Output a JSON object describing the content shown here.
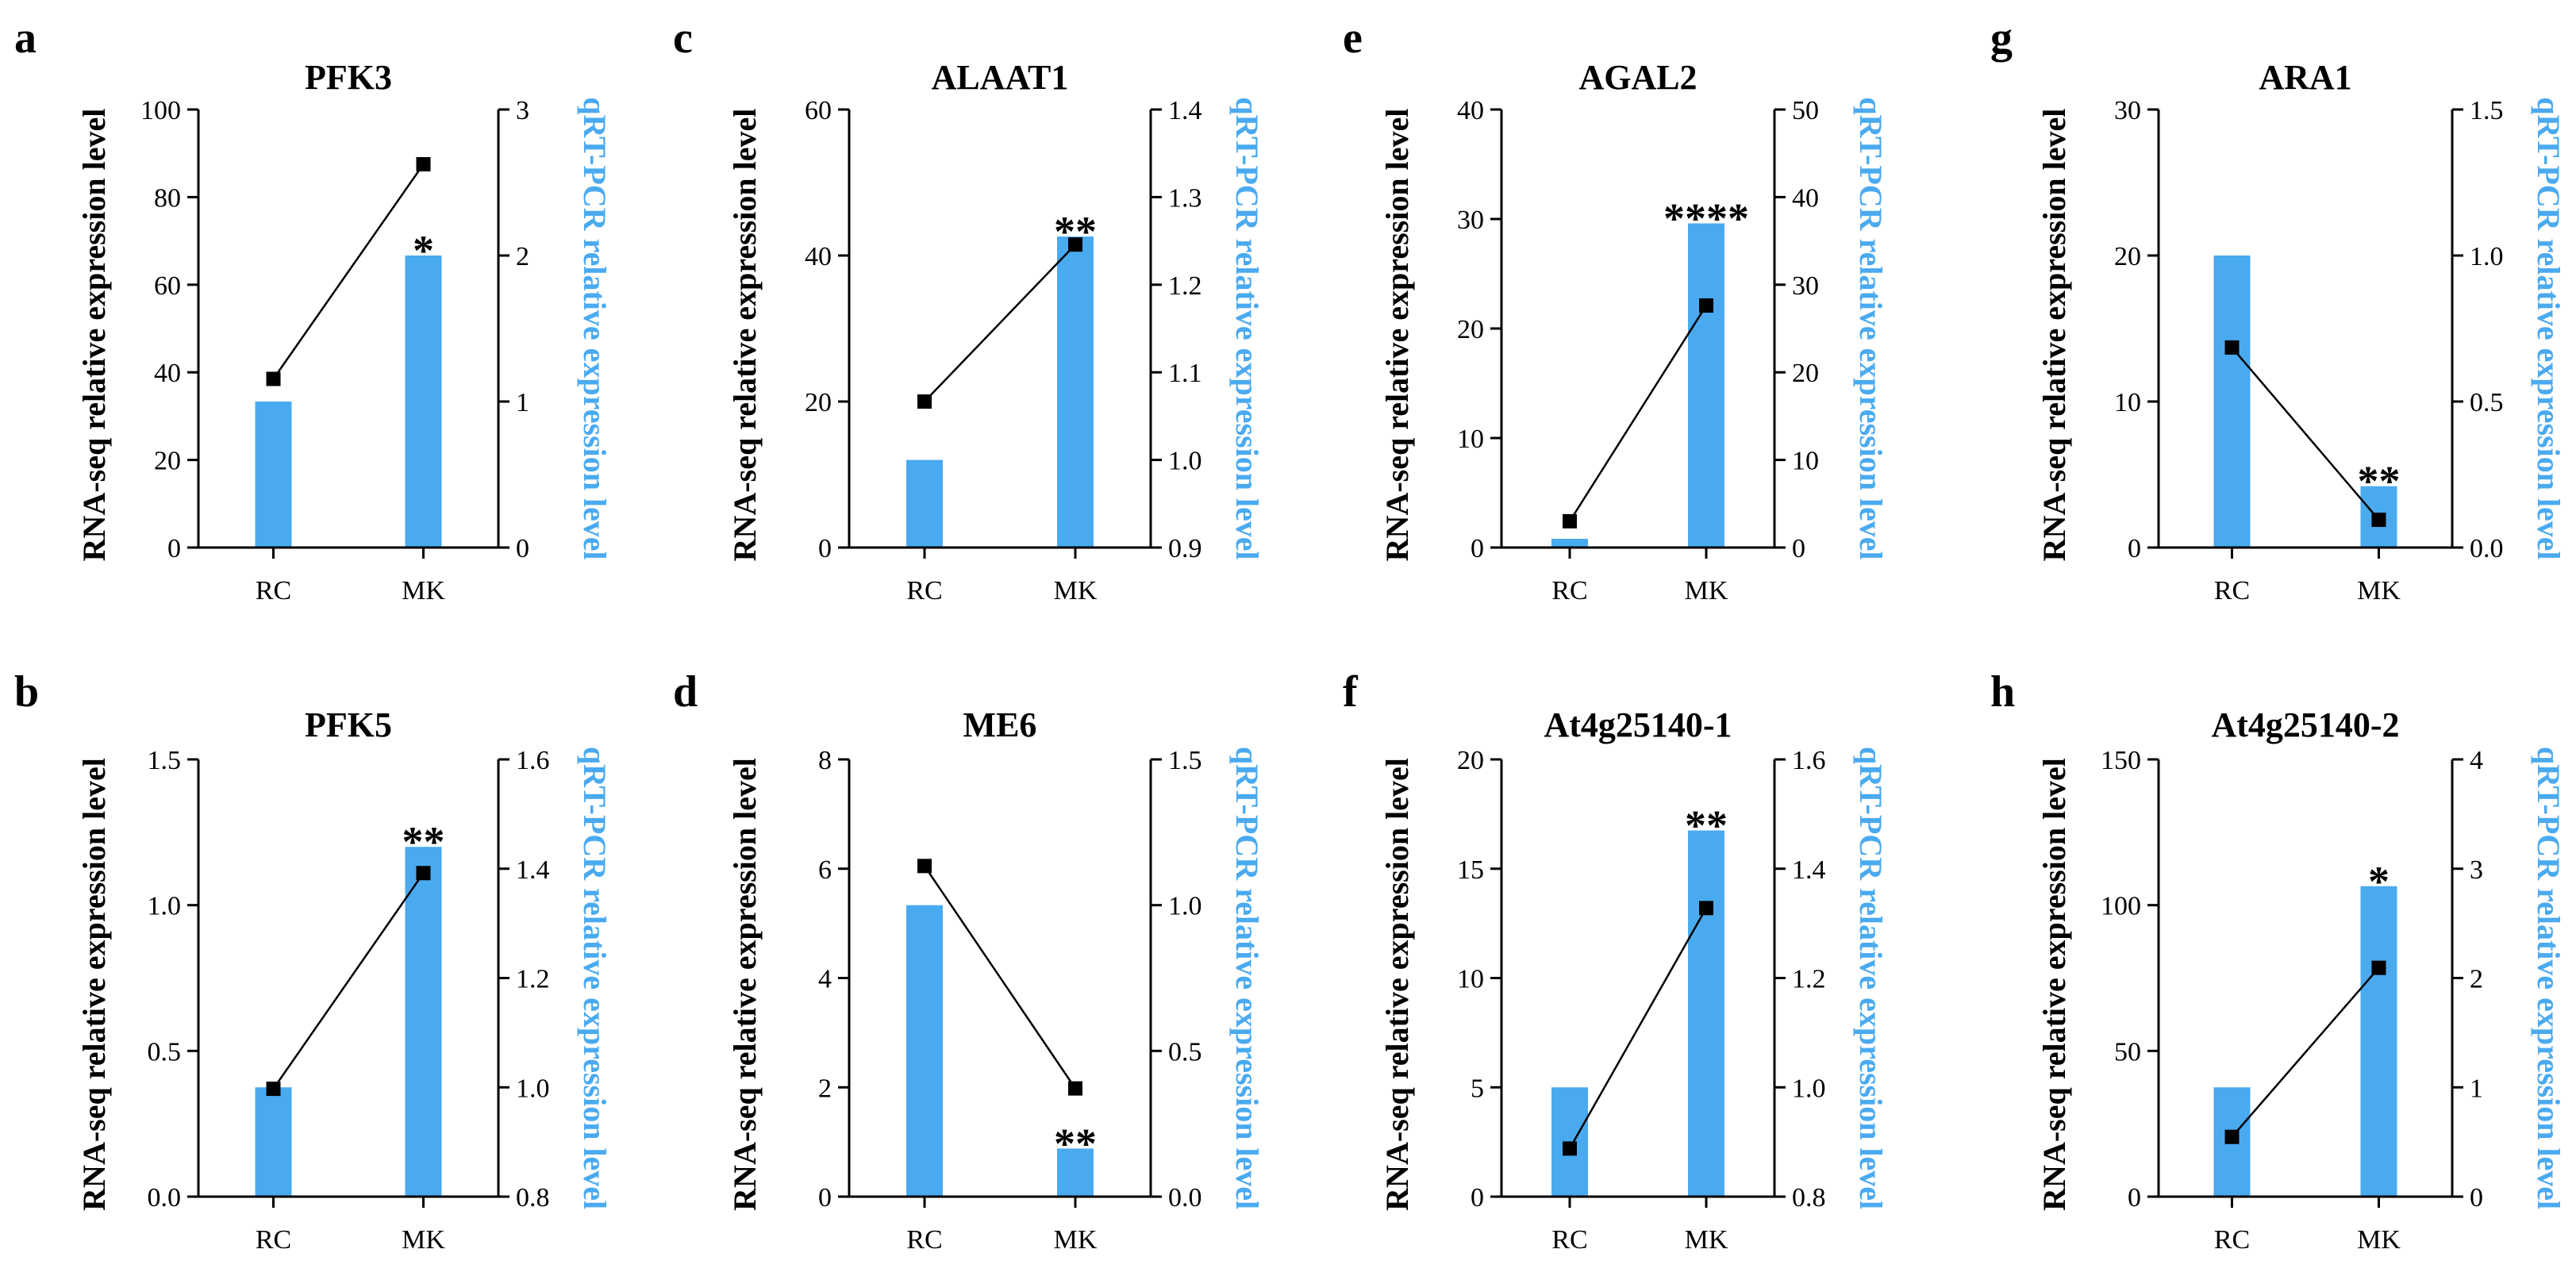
{
  "colors": {
    "bar": "#4aaaf0",
    "axis": "#000000",
    "line": "#000000",
    "right_label": "#4aaaf0"
  },
  "chart_data": [
    {
      "panel": "a",
      "type": "bar+line",
      "title": "PFK3",
      "categories": [
        "RC",
        "MK"
      ],
      "ylabel": "RNA-seq relative expression level",
      "y2label": "qRT-PCR relative expression level",
      "ylim": [
        0,
        100
      ],
      "yticks": [
        "0",
        "20",
        "40",
        "60",
        "80",
        "100"
      ],
      "y2lim": [
        0,
        3
      ],
      "y2ticks": [
        "0",
        "1",
        "2",
        "3"
      ],
      "bar_series": {
        "name": "qRT-PCR",
        "axis": "right",
        "values": [
          1.0,
          2.0
        ]
      },
      "line_series": {
        "name": "RNA-seq",
        "axis": "left",
        "values": [
          38.5,
          87.5
        ]
      },
      "significance": [
        "",
        "*"
      ]
    },
    {
      "panel": "b",
      "type": "bar+line",
      "title": "PFK5",
      "categories": [
        "RC",
        "MK"
      ],
      "ylabel": "RNA-seq relative expression level",
      "y2label": "qRT-PCR relative expression level",
      "ylim": [
        0,
        1.5
      ],
      "yticks": [
        "0.0",
        "0.5",
        "1.0",
        "1.5"
      ],
      "y2lim": [
        0.8,
        1.6
      ],
      "y2ticks": [
        "0.8",
        "1.0",
        "1.2",
        "1.4",
        "1.6"
      ],
      "bar_series": {
        "name": "qRT-PCR",
        "axis": "right",
        "values": [
          1.0,
          1.44
        ]
      },
      "line_series": {
        "name": "RNA-seq",
        "axis": "left",
        "values": [
          0.37,
          1.11
        ]
      },
      "significance": [
        "",
        "**"
      ]
    },
    {
      "panel": "c",
      "type": "bar+line",
      "title": "ALAAT1",
      "categories": [
        "RC",
        "MK"
      ],
      "ylabel": "RNA-seq relative expression level",
      "y2label": "qRT-PCR relative expression level",
      "ylim": [
        0,
        60
      ],
      "yticks": [
        "0",
        "20",
        "40",
        "60"
      ],
      "y2lim": [
        0.9,
        1.4
      ],
      "y2ticks": [
        "0.9",
        "1.0",
        "1.1",
        "1.2",
        "1.3",
        "1.4"
      ],
      "bar_series": {
        "name": "qRT-PCR",
        "axis": "right",
        "values": [
          1.0,
          1.255
        ]
      },
      "line_series": {
        "name": "RNA-seq",
        "axis": "left",
        "values": [
          20.0,
          41.5
        ]
      },
      "significance": [
        "",
        "**"
      ]
    },
    {
      "panel": "d",
      "type": "bar+line",
      "title": "ME6",
      "categories": [
        "RC",
        "MK"
      ],
      "ylabel": "RNA-seq relative expression level",
      "y2label": "qRT-PCR relative expression level",
      "ylim": [
        0,
        8
      ],
      "yticks": [
        "0",
        "2",
        "4",
        "6",
        "8"
      ],
      "y2lim": [
        0,
        1.5
      ],
      "y2ticks": [
        "0.0",
        "0.5",
        "1.0",
        "1.5"
      ],
      "bar_series": {
        "name": "qRT-PCR",
        "axis": "right",
        "values": [
          1.0,
          0.165
        ]
      },
      "line_series": {
        "name": "RNA-seq",
        "axis": "left",
        "values": [
          6.05,
          1.98
        ]
      },
      "significance": [
        "",
        "**"
      ]
    },
    {
      "panel": "e",
      "type": "bar+line",
      "title": "AGAL2",
      "categories": [
        "RC",
        "MK"
      ],
      "ylabel": "RNA-seq relative expression level",
      "y2label": "qRT-PCR relative expression level",
      "ylim": [
        0,
        40
      ],
      "yticks": [
        "0",
        "10",
        "20",
        "30",
        "40"
      ],
      "y2lim": [
        0,
        50
      ],
      "y2ticks": [
        "0",
        "10",
        "20",
        "30",
        "40",
        "50"
      ],
      "bar_series": {
        "name": "qRT-PCR",
        "axis": "right",
        "values": [
          1.0,
          37.0
        ]
      },
      "line_series": {
        "name": "RNA-seq",
        "axis": "left",
        "values": [
          2.4,
          22.1
        ]
      },
      "significance": [
        "",
        "****"
      ]
    },
    {
      "panel": "f",
      "type": "bar+line",
      "title": "At4g25140-1",
      "categories": [
        "RC",
        "MK"
      ],
      "ylabel": "RNA-seq relative expression level",
      "y2label": "qRT-PCR relative expression level",
      "ylim": [
        0,
        20
      ],
      "yticks": [
        "0",
        "5",
        "10",
        "15",
        "20"
      ],
      "y2lim": [
        0.8,
        1.6
      ],
      "y2ticks": [
        "0.8",
        "1.0",
        "1.2",
        "1.4",
        "1.6"
      ],
      "bar_series": {
        "name": "qRT-PCR",
        "axis": "right",
        "values": [
          1.0,
          1.47
        ]
      },
      "line_series": {
        "name": "RNA-seq",
        "axis": "left",
        "values": [
          2.2,
          13.2
        ]
      },
      "significance": [
        "",
        "**"
      ]
    },
    {
      "panel": "g",
      "type": "bar+line",
      "title": "ARA1",
      "categories": [
        "RC",
        "MK"
      ],
      "ylabel": "RNA-seq relative expression level",
      "y2label": "qRT-PCR relative expression level",
      "ylim": [
        0,
        30
      ],
      "yticks": [
        "0",
        "10",
        "20",
        "30"
      ],
      "y2lim": [
        0,
        1.5
      ],
      "y2ticks": [
        "0.0",
        "0.5",
        "1.0",
        "1.5"
      ],
      "bar_series": {
        "name": "qRT-PCR",
        "axis": "right",
        "values": [
          1.0,
          0.21
        ]
      },
      "line_series": {
        "name": "RNA-seq",
        "axis": "left",
        "values": [
          13.7,
          1.9
        ]
      },
      "significance": [
        "",
        "**"
      ]
    },
    {
      "panel": "h",
      "type": "bar+line",
      "title": "At4g25140-2",
      "categories": [
        "RC",
        "MK"
      ],
      "ylabel": "RNA-seq relative expression level",
      "y2label": "qRT-PCR relative expression level",
      "ylim": [
        0,
        150
      ],
      "yticks": [
        "0",
        "50",
        "100",
        "150"
      ],
      "y2lim": [
        0,
        4
      ],
      "y2ticks": [
        "0",
        "1",
        "2",
        "3",
        "4"
      ],
      "bar_series": {
        "name": "qRT-PCR",
        "axis": "right",
        "values": [
          1.0,
          2.84
        ]
      },
      "line_series": {
        "name": "RNA-seq",
        "axis": "left",
        "values": [
          20.5,
          78.5
        ]
      },
      "significance": [
        "",
        "*"
      ]
    }
  ]
}
